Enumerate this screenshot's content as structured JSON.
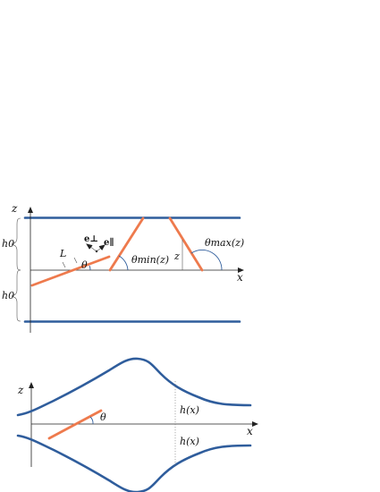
{
  "top_figure": {
    "labels": {
      "z_axis": "z",
      "x_axis": "x",
      "h0_upper": "h0",
      "h0_lower": "h0",
      "rod_length": "L",
      "theta": "θ",
      "e_perp": "e⊥",
      "e_par": "e∥",
      "theta_min": "θmin(z)",
      "z_height": "z",
      "theta_max": "θmax(z)"
    }
  },
  "bottom_figure": {
    "labels": {
      "z_axis": "z",
      "x_axis": "x",
      "theta": "θ",
      "h_upper": "h(x)",
      "h_lower": "h(x)"
    }
  },
  "colors": {
    "wall": "#2f5d9c",
    "rod": "#ee7a4d",
    "axis": "#222222"
  }
}
